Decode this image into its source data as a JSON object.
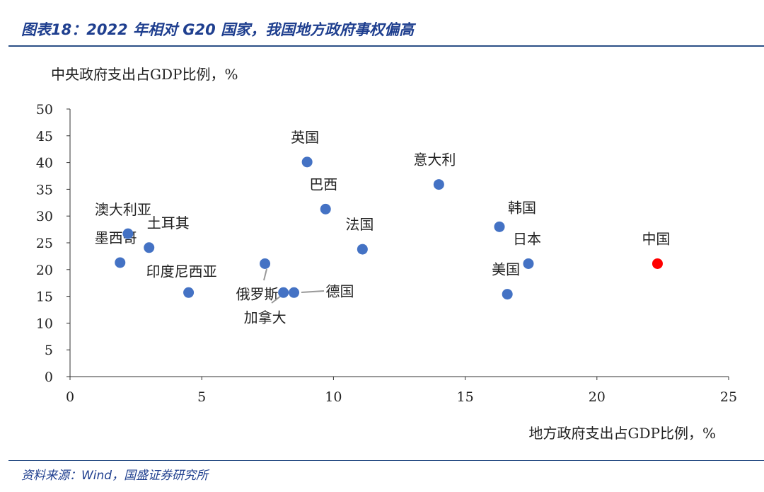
{
  "header": {
    "title": "图表18：2022 年相对 G20 国家，我国地方政府事权偏高"
  },
  "footer": {
    "source": "资料来源：Wind，国盛证券研究所"
  },
  "colors": {
    "default_point": "#4472c4",
    "highlight_point": "#ff0000",
    "title": "#1f3f8f"
  },
  "chart_data": {
    "type": "scatter",
    "xlabel": "地方政府支出占GDP比例，%",
    "ylabel": "中央政府支出占GDP比例，%",
    "xlim": [
      0,
      25
    ],
    "ylim": [
      0,
      50
    ],
    "xticks": [
      "0",
      "5",
      "10",
      "15",
      "20",
      "25"
    ],
    "yticks": [
      "0",
      "5",
      "10",
      "15",
      "20",
      "25",
      "30",
      "35",
      "40",
      "45",
      "50"
    ],
    "grid": false,
    "points": [
      {
        "label": "墨西哥",
        "x": 1.9,
        "y": 21.3
      },
      {
        "label": "澳大利亚",
        "x": 2.2,
        "y": 26.7
      },
      {
        "label": "土耳其",
        "x": 3.0,
        "y": 24.1
      },
      {
        "label": "印度尼西亚",
        "x": 4.5,
        "y": 15.7
      },
      {
        "label": "俄罗斯",
        "x": 7.4,
        "y": 21.1
      },
      {
        "label": "加拿大",
        "x": 8.1,
        "y": 15.7
      },
      {
        "label": "德国",
        "x": 8.5,
        "y": 15.7
      },
      {
        "label": "英国",
        "x": 9.0,
        "y": 40.1
      },
      {
        "label": "巴西",
        "x": 9.7,
        "y": 31.3
      },
      {
        "label": "法国",
        "x": 11.1,
        "y": 23.8
      },
      {
        "label": "意大利",
        "x": 14.0,
        "y": 35.9
      },
      {
        "label": "韩国",
        "x": 16.3,
        "y": 28.0
      },
      {
        "label": "美国",
        "x": 16.6,
        "y": 15.4
      },
      {
        "label": "日本",
        "x": 17.4,
        "y": 21.1
      },
      {
        "label": "中国",
        "x": 22.3,
        "y": 21.1,
        "highlight": true
      }
    ]
  }
}
